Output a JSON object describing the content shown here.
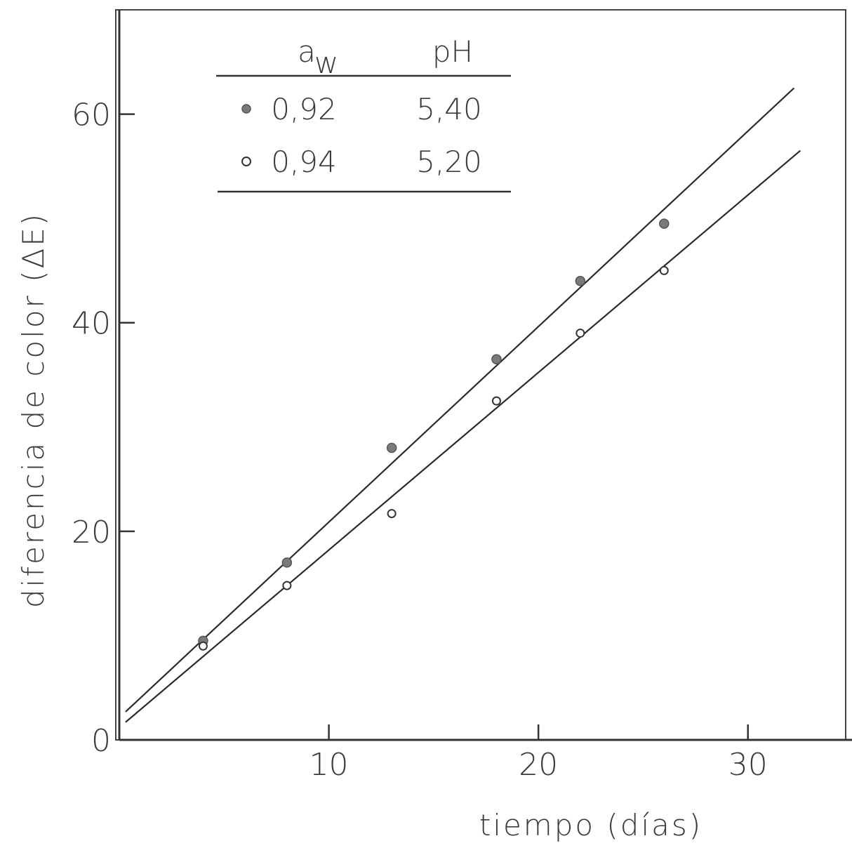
{
  "chart_data": {
    "type": "scatter",
    "xlabel": "tiempo (días)",
    "ylabel": "diferencia de color (ΔE)",
    "xlim": [
      0,
      35
    ],
    "ylim": [
      0,
      70
    ],
    "xticks": [
      "10",
      "20",
      "30"
    ],
    "xtick_values": [
      10,
      20,
      30
    ],
    "yticks": [
      "0",
      "20",
      "40",
      "60"
    ],
    "ytick_values": [
      0,
      20,
      40,
      60
    ],
    "grid": false,
    "legend": {
      "placement": "top-left",
      "header_aw": "a",
      "header_aw_sub": "w",
      "header_ph": "pH",
      "rows": [
        {
          "aw": "0,92",
          "ph": "5,40",
          "marker": "filled"
        },
        {
          "aw": "0,94",
          "ph": "5,20",
          "marker": "open"
        }
      ]
    },
    "series": [
      {
        "marker": "filled",
        "x": [
          4,
          8,
          13,
          18,
          22,
          26
        ],
        "y": [
          9.5,
          17.0,
          28.0,
          36.5,
          44.0,
          49.5
        ],
        "fit": {
          "x": [
            0.3,
            32.2
          ],
          "y": [
            2.7,
            62.5
          ]
        }
      },
      {
        "marker": "open",
        "x": [
          4,
          8,
          13,
          18,
          22,
          26
        ],
        "y": [
          9.0,
          14.8,
          21.7,
          32.5,
          39.0,
          45.0
        ],
        "fit": {
          "x": [
            0.3,
            32.5
          ],
          "y": [
            1.7,
            56.5
          ]
        }
      }
    ]
  }
}
